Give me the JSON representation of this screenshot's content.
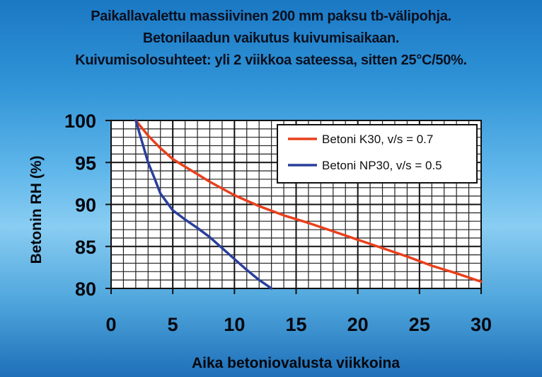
{
  "chart_data": {
    "type": "line",
    "title_lines": [
      "Paikallavalettu massiivinen 200 mm paksu tb-välipohja.",
      "Betonilaadun  vaikutus kuivumisaikaan.",
      "Kuivumisolosuhteet: yli 2 viikkoa sateessa, sitten 25°C/50%."
    ],
    "xlabel": "Aika betoniovalusta viikkoina",
    "ylabel": "Betonin RH (%)",
    "xlim": [
      0,
      30
    ],
    "ylim": [
      80,
      100
    ],
    "x_ticks": [
      "0",
      "5",
      "10",
      "15",
      "20",
      "25",
      "30"
    ],
    "y_ticks": [
      "100",
      "95",
      "90",
      "85",
      "80"
    ],
    "grid": true,
    "legend_position": "top-right",
    "series": [
      {
        "name": "Betoni K30, v/s = 0.7",
        "color": "#e8401c",
        "x": [
          2,
          3,
          4,
          5,
          6,
          7,
          8,
          10,
          12,
          14,
          16,
          18,
          20,
          22,
          24,
          26,
          28,
          30
        ],
        "y": [
          100,
          98.2,
          96.7,
          95.4,
          94.5,
          93.6,
          92.7,
          91.1,
          89.8,
          88.7,
          87.8,
          86.8,
          85.8,
          84.8,
          83.8,
          82.7,
          81.8,
          80.8
        ]
      },
      {
        "name": "Betoni NP30, v/s = 0.5",
        "color": "#2a3f9c",
        "x": [
          2,
          2.5,
          3,
          3.5,
          4,
          5,
          6,
          7,
          8,
          9,
          10,
          11,
          12,
          13
        ],
        "y": [
          100,
          97.5,
          95,
          93.2,
          91.3,
          89.3,
          88.2,
          87.2,
          86.1,
          84.8,
          83.5,
          82.2,
          81,
          80
        ]
      }
    ]
  }
}
